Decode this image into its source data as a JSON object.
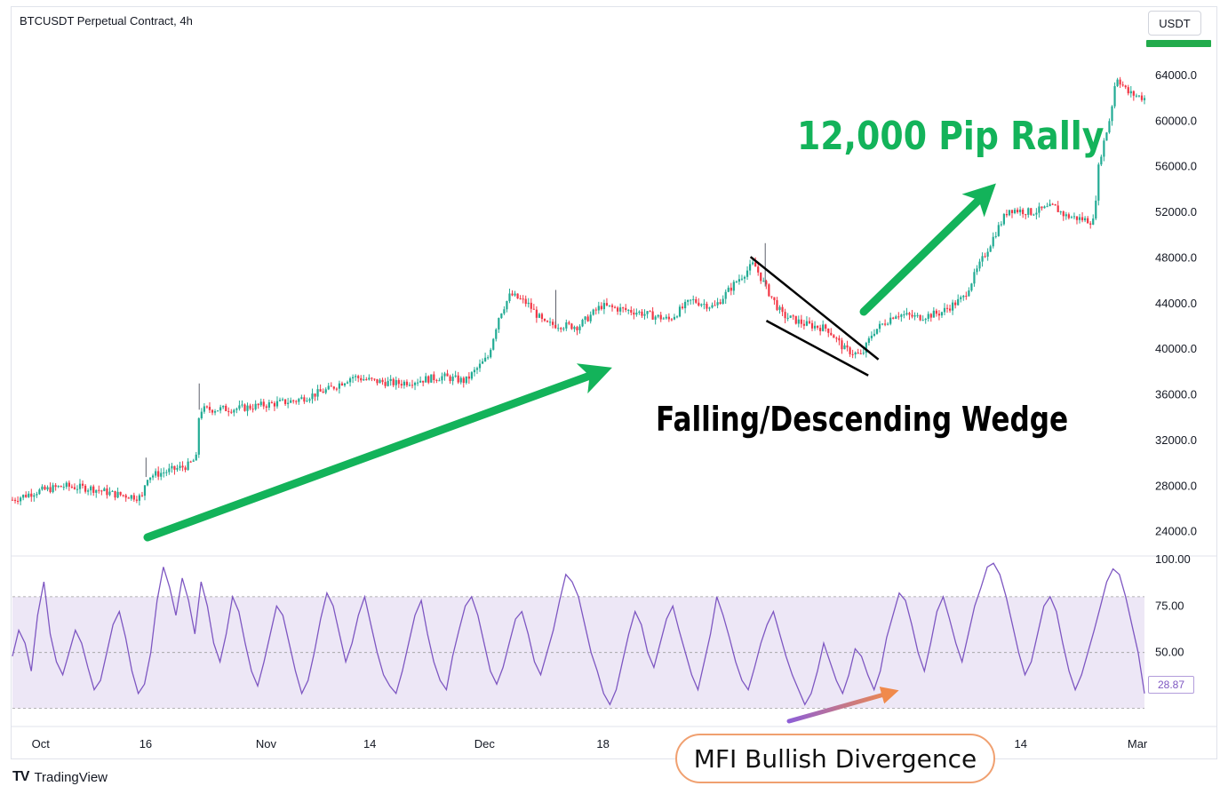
{
  "header": {
    "title": "BTCUSDT Perpetual Contract, 4h",
    "currency": "USDT"
  },
  "brand": {
    "logo": "TV",
    "name": "TradingView"
  },
  "annotations": {
    "rally": "12,000 Pip Rally",
    "wedge": "Falling/Descending Wedge",
    "mfi": "MFI Bullish Divergence"
  },
  "colors": {
    "up": "#22ab94",
    "down": "#f23645",
    "arrow": "#13b35a",
    "mfi_line": "#7e57c2",
    "mfi_band": "#ede7f6",
    "divergence_start": "#8e5fd6",
    "divergence_end": "#f08a4b"
  },
  "chart_data": [
    {
      "type": "candlestick",
      "title": "BTCUSDT Perpetual Contract, 4h",
      "ylim": [
        22500,
        67500
      ],
      "y_ticks": [
        "24000.0",
        "28000.0",
        "32000.0",
        "36000.0",
        "40000.0",
        "44000.0",
        "48000.0",
        "52000.0",
        "56000.0",
        "60000.0",
        "64000.0"
      ],
      "x_ticks": [
        "Oct",
        "16",
        "Nov",
        "14",
        "Dec",
        "18",
        "14",
        "Mar"
      ],
      "price_path": [
        [
          0,
          26800
        ],
        [
          0.02,
          27500
        ],
        [
          0.045,
          28000
        ],
        [
          0.07,
          27800
        ],
        [
          0.09,
          27300
        ],
        [
          0.115,
          27000
        ],
        [
          0.118,
          28800
        ],
        [
          0.155,
          29800
        ],
        [
          0.163,
          30500
        ],
        [
          0.165,
          34700
        ],
        [
          0.2,
          34800
        ],
        [
          0.25,
          35500
        ],
        [
          0.28,
          36500
        ],
        [
          0.3,
          37600
        ],
        [
          0.32,
          37200
        ],
        [
          0.34,
          37000
        ],
        [
          0.36,
          37300
        ],
        [
          0.38,
          37600
        ],
        [
          0.4,
          37200
        ],
        [
          0.42,
          39300
        ],
        [
          0.43,
          43000
        ],
        [
          0.44,
          44800
        ],
        [
          0.455,
          44000
        ],
        [
          0.47,
          42200
        ],
        [
          0.5,
          42000
        ],
        [
          0.52,
          43800
        ],
        [
          0.55,
          43300
        ],
        [
          0.58,
          42600
        ],
        [
          0.6,
          44300
        ],
        [
          0.62,
          43700
        ],
        [
          0.64,
          46000
        ],
        [
          0.655,
          47500
        ],
        [
          0.665,
          45500
        ],
        [
          0.68,
          43000
        ],
        [
          0.7,
          42200
        ],
        [
          0.72,
          41800
        ],
        [
          0.735,
          40000
        ],
        [
          0.75,
          39400
        ],
        [
          0.76,
          41500
        ],
        [
          0.78,
          43100
        ],
        [
          0.8,
          42800
        ],
        [
          0.82,
          43200
        ],
        [
          0.84,
          44500
        ],
        [
          0.86,
          48500
        ],
        [
          0.87,
          50500
        ],
        [
          0.88,
          52300
        ],
        [
          0.9,
          52000
        ],
        [
          0.92,
          52500
        ],
        [
          0.93,
          51700
        ],
        [
          0.945,
          51400
        ],
        [
          0.955,
          51200
        ],
        [
          0.96,
          56500
        ],
        [
          0.97,
          60500
        ],
        [
          0.975,
          64000
        ],
        [
          0.985,
          62500
        ],
        [
          1.0,
          62000
        ]
      ],
      "spikes": [
        [
          0.118,
          30500
        ],
        [
          0.165,
          37000
        ],
        [
          0.48,
          45200
        ],
        [
          0.665,
          49300
        ]
      ],
      "trendlines": [
        {
          "name": "wedge-upper",
          "points": [
            [
              0.652,
              48100
            ],
            [
              0.765,
              39100
            ]
          ]
        },
        {
          "name": "wedge-lower",
          "points": [
            [
              0.666,
              42500
            ],
            [
              0.756,
              37700
            ]
          ]
        }
      ]
    },
    {
      "type": "line",
      "name": "MFI",
      "ylim": [
        15,
        100
      ],
      "y_ticks": [
        "100.00",
        "75.00",
        "50.00"
      ],
      "bands": [
        20,
        50,
        80
      ],
      "last_value": "28.87",
      "values": [
        48,
        62,
        55,
        40,
        70,
        88,
        60,
        45,
        38,
        50,
        62,
        55,
        42,
        30,
        35,
        50,
        65,
        72,
        58,
        40,
        28,
        33,
        50,
        78,
        96,
        85,
        70,
        90,
        78,
        60,
        88,
        75,
        55,
        45,
        60,
        80,
        72,
        55,
        40,
        32,
        45,
        60,
        75,
        70,
        55,
        40,
        28,
        35,
        50,
        68,
        82,
        75,
        60,
        45,
        55,
        70,
        80,
        65,
        50,
        38,
        32,
        28,
        40,
        55,
        70,
        78,
        60,
        45,
        35,
        30,
        48,
        62,
        75,
        80,
        70,
        55,
        40,
        33,
        42,
        55,
        68,
        72,
        60,
        45,
        38,
        50,
        62,
        78,
        92,
        88,
        80,
        65,
        50,
        40,
        28,
        22,
        30,
        45,
        60,
        72,
        65,
        50,
        42,
        55,
        68,
        75,
        62,
        50,
        38,
        30,
        45,
        60,
        80,
        70,
        58,
        45,
        35,
        30,
        42,
        55,
        65,
        72,
        60,
        48,
        38,
        30,
        22,
        28,
        40,
        55,
        45,
        35,
        28,
        38,
        52,
        48,
        38,
        30,
        40,
        58,
        70,
        82,
        78,
        65,
        50,
        40,
        55,
        72,
        80,
        68,
        55,
        45,
        60,
        75,
        85,
        96,
        98,
        92,
        80,
        65,
        50,
        38,
        45,
        60,
        75,
        80,
        72,
        55,
        40,
        30,
        38,
        50,
        62,
        75,
        88,
        95,
        92,
        80,
        65,
        50,
        28
      ]
    }
  ]
}
